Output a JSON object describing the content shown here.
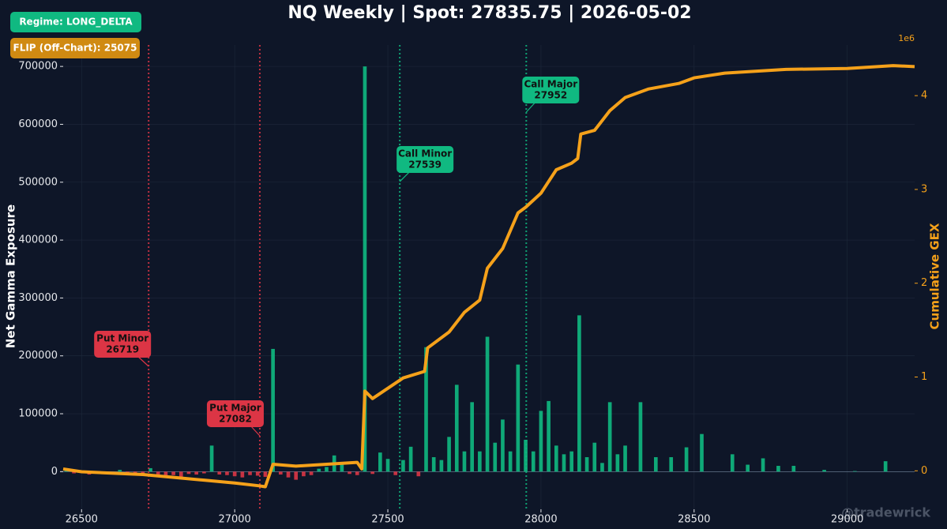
{
  "chart_data": {
    "type": "bar",
    "title": "NQ Weekly | Spot: 27835.75 | 2026-05-02",
    "y_label": "Net Gamma Exposure",
    "y2_label": "Cumulative GEX",
    "y2_offset_label": "1e6",
    "badges": [
      {
        "text": "Regime: LONG_DELTA",
        "color": "#10b981"
      },
      {
        "text": "FLIP (Off-Chart): 25075",
        "color": "#d08a12"
      }
    ],
    "watermark": "@tradewrick",
    "xlim": [
      26440,
      29220
    ],
    "xticks": [
      26500,
      27000,
      27500,
      28000,
      28500,
      29000
    ],
    "ylim": [
      -65000,
      737000
    ],
    "yticks": [
      0,
      100000,
      200000,
      300000,
      400000,
      500000,
      600000,
      700000
    ],
    "y2lim": [
      -0.41,
      4.54
    ],
    "y2ticks": [
      0,
      1,
      2,
      3,
      4
    ],
    "grid": true,
    "positive_color": "#10b981",
    "negative_color": "#dc3545",
    "x": [
      26450,
      26475,
      26525,
      26575,
      26625,
      26650,
      26675,
      26700,
      26725,
      26750,
      26775,
      26800,
      26825,
      26850,
      26875,
      26900,
      26925,
      26950,
      26975,
      27000,
      27025,
      27050,
      27075,
      27100,
      27125,
      27150,
      27175,
      27200,
      27225,
      27250,
      27275,
      27300,
      27325,
      27350,
      27375,
      27400,
      27425,
      27450,
      27475,
      27500,
      27525,
      27550,
      27575,
      27600,
      27625,
      27650,
      27675,
      27700,
      27725,
      27750,
      27775,
      27800,
      27825,
      27850,
      27875,
      27900,
      27925,
      27950,
      27975,
      28000,
      28025,
      28050,
      28075,
      28100,
      28125,
      28150,
      28175,
      28200,
      28225,
      28250,
      28275,
      28325,
      28375,
      28425,
      28475,
      28525,
      28625,
      28675,
      28725,
      28775,
      28825,
      28925,
      29025,
      29125
    ],
    "values": [
      3000,
      -3000,
      -5000,
      -3000,
      3000,
      -5000,
      -7000,
      -5000,
      6000,
      -8000,
      -10000,
      -6000,
      -9000,
      -4000,
      -5000,
      -3000,
      45000,
      -5000,
      -6000,
      -8000,
      -10000,
      -6000,
      -7000,
      -9000,
      212000,
      -5000,
      -10000,
      -14000,
      -8000,
      -6000,
      5000,
      8000,
      28000,
      12000,
      -4000,
      -6000,
      700000,
      -4000,
      33000,
      22000,
      -6000,
      20000,
      43000,
      -8000,
      215000,
      25000,
      20000,
      60000,
      150000,
      35000,
      120000,
      35000,
      233000,
      50000,
      90000,
      35000,
      185000,
      55000,
      35000,
      105000,
      122000,
      45000,
      30000,
      35000,
      270000,
      25000,
      50000,
      15000,
      120000,
      30000,
      45000,
      120000,
      25000,
      25000,
      42000,
      65000,
      30000,
      12000,
      23000,
      10000,
      10000,
      3000,
      1000,
      18000
    ],
    "line": {
      "name": "Cumulative GEX",
      "color": "#f5a11a",
      "axis": "y2",
      "x": [
        26440,
        26500,
        26700,
        26900,
        27000,
        27080,
        27100,
        27125,
        27200,
        27300,
        27400,
        27415,
        27425,
        27450,
        27550,
        27620,
        27630,
        27700,
        27750,
        27800,
        27825,
        27875,
        27925,
        27950,
        28000,
        28050,
        28100,
        28120,
        28130,
        28175,
        28225,
        28275,
        28350,
        28450,
        28500,
        28600,
        28700,
        28800,
        29000,
        29150,
        29220
      ],
      "values": [
        0.02,
        -0.01,
        -0.04,
        -0.1,
        -0.13,
        -0.16,
        -0.17,
        0.07,
        0.05,
        0.07,
        0.09,
        0.02,
        0.85,
        0.77,
        0.99,
        1.06,
        1.31,
        1.48,
        1.69,
        1.82,
        2.16,
        2.37,
        2.75,
        2.81,
        2.96,
        3.21,
        3.28,
        3.33,
        3.59,
        3.63,
        3.84,
        3.98,
        4.07,
        4.13,
        4.19,
        4.24,
        4.26,
        4.28,
        4.29,
        4.32,
        4.31
      ]
    },
    "levels": [
      {
        "name": "Put Minor",
        "value": 26719,
        "color": "#dc3545"
      },
      {
        "name": "Put Major",
        "value": 27082,
        "color": "#dc3545"
      },
      {
        "name": "Call Minor",
        "value": 27539,
        "color": "#10b981"
      },
      {
        "name": "Call Major",
        "value": 27952,
        "color": "#10b981"
      }
    ]
  }
}
